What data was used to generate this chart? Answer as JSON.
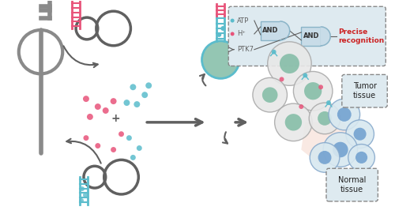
{
  "bg_color": "#ffffff",
  "gray": "#8a8a8a",
  "dark_gray": "#606060",
  "pink": "#e8547a",
  "teal": "#5bbccc",
  "green_cell": "#7ab8a0",
  "light_gray": "#c8c8c8",
  "gate_bg": "#d4e8f0",
  "gate_border": "#8ab4c8",
  "red_text": "#cc2222",
  "dashed_box_color": "#888888",
  "label_tumor": "Tumor\ntissue",
  "label_normal": "Normal\ntissue",
  "label_precise": "Precise\nrecognition",
  "atp_label": "ATP",
  "h_label": "H⁺",
  "ptk7_label": "PTK7",
  "and_label": "AND"
}
